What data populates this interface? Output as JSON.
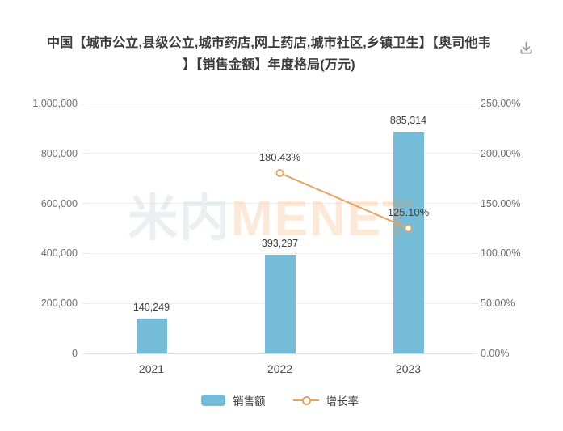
{
  "title": {
    "line1": "中国【城市公立,县级公立,城市药店,网上药店,城市社区,乡镇卫生】【奥司他韦",
    "line2": "】【销售金额】年度格局(万元)",
    "full": "中国【城市公立,县级公立,城市药店,网上药店,城市社区,乡镇卫生】【奥司他韦】【销售金额】年度格局(万元)"
  },
  "watermark": {
    "cjk": "米内",
    "latin": "MENET"
  },
  "legend": {
    "bar_label": "销售额",
    "line_label": "增长率"
  },
  "colors": {
    "bar": "#74bcd8",
    "line": "#e8a25e",
    "grid": "#f0f0f0",
    "axis_line": "#dcdcdc",
    "axis_text": "#6e6e6e",
    "data_label": "#3c3c3c"
  },
  "chart_data": {
    "type": "bar",
    "subtype": "bar+line dual axis",
    "title": "中国【城市公立,县级公立,城市药店,网上药店,城市社区,乡镇卫生】【奥司他韦】【销售金额】年度格局(万元)",
    "unit": "万元",
    "categories": [
      "2021",
      "2022",
      "2023"
    ],
    "series": [
      {
        "name": "销售额",
        "type": "bar",
        "axis": "left",
        "color": "#74bcd8",
        "values": [
          140249,
          393297,
          885314
        ],
        "labels": [
          "140,249",
          "393,297",
          "885,314"
        ]
      },
      {
        "name": "增长率",
        "type": "line",
        "axis": "right",
        "color": "#e8a25e",
        "values": [
          null,
          180.43,
          125.1
        ],
        "labels": [
          null,
          "180.43%",
          "125.10%"
        ]
      }
    ],
    "left_axis": {
      "min": 0,
      "max": 1000000,
      "ticks": [
        "0",
        "200,000",
        "400,000",
        "600,000",
        "800,000",
        "1,000,000"
      ]
    },
    "right_axis": {
      "min": 0,
      "max": 250,
      "ticks": [
        "0.00%",
        "50.00%",
        "100.00%",
        "150.00%",
        "200.00%",
        "250.00%"
      ]
    },
    "grid": true,
    "legend_position": "bottom"
  }
}
